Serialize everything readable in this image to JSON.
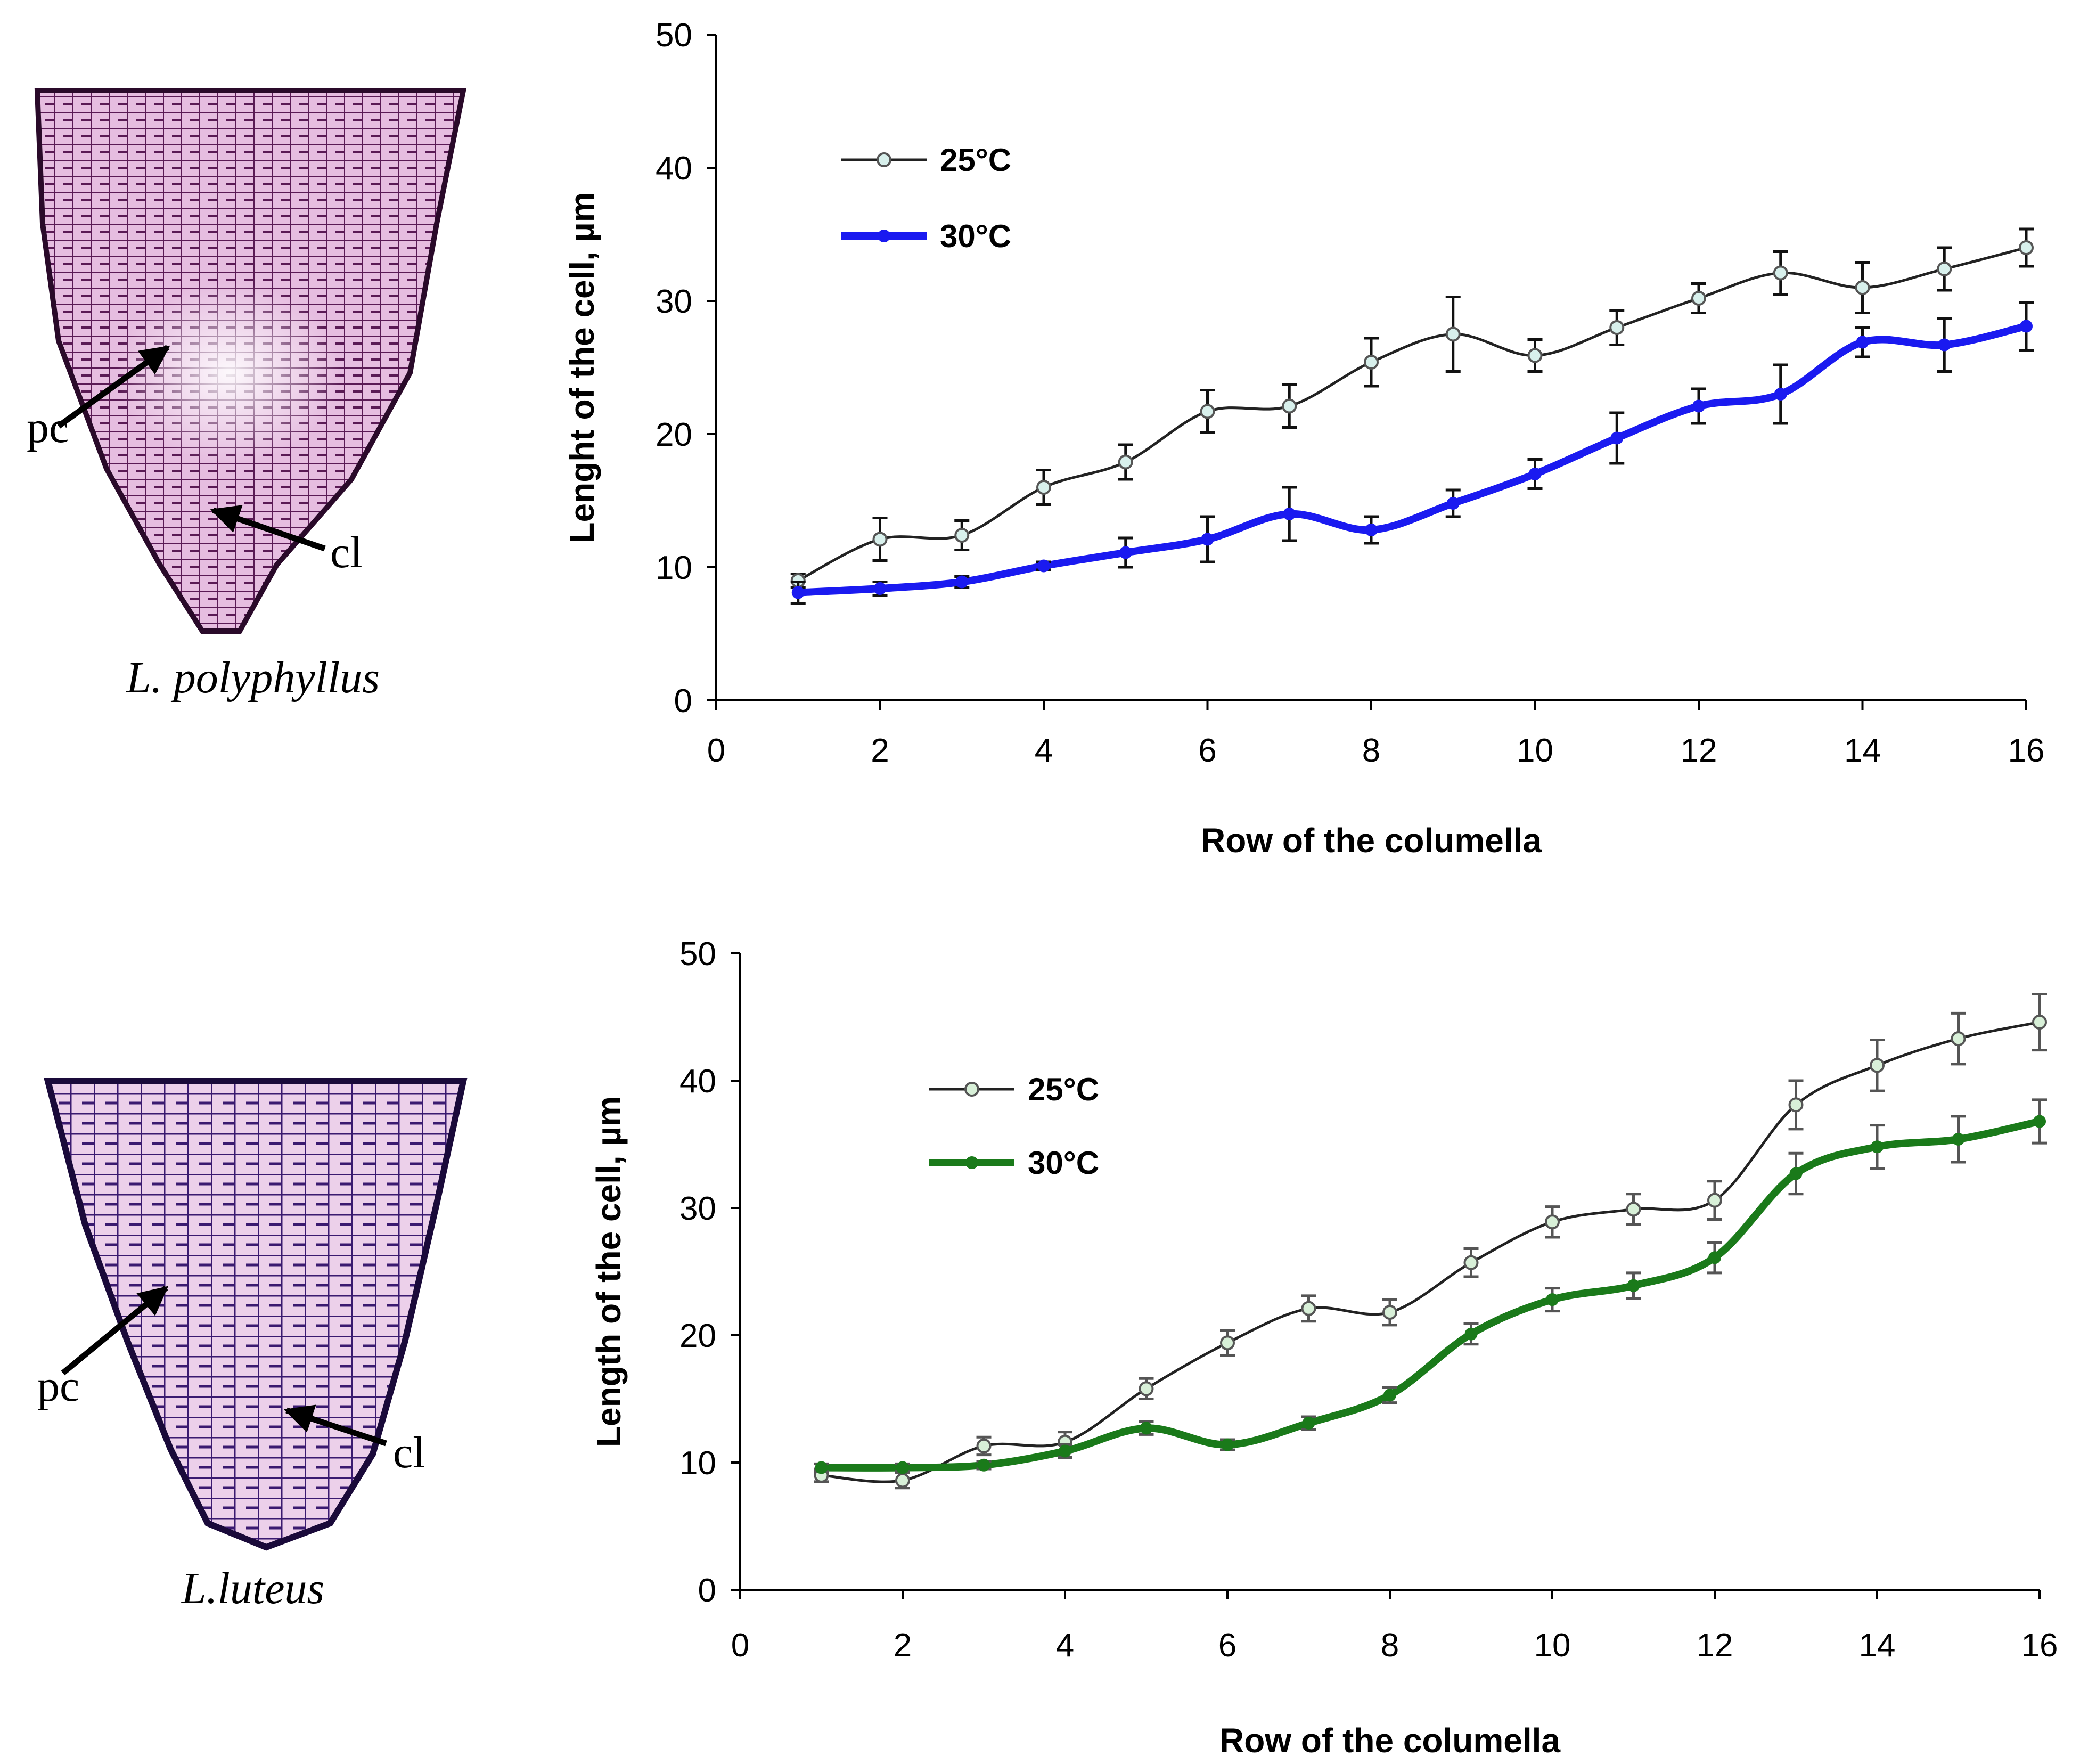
{
  "photos": [
    {
      "species": "L. polyphyllus",
      "label_pc": "pc",
      "label_cl": "cl",
      "color": "#a03a90"
    },
    {
      "species": "L.luteus",
      "label_pc": "pc",
      "label_cl": "cl",
      "color": "#6a2aa0"
    }
  ],
  "chart_data": [
    {
      "type": "line",
      "title": "",
      "xlabel": "Row of the columella",
      "ylabel": "Lenght of the cell, µm",
      "xlim": [
        0,
        16
      ],
      "ylim": [
        0,
        50
      ],
      "xticks": [
        0,
        2,
        4,
        6,
        8,
        10,
        12,
        14,
        16
      ],
      "yticks": [
        0,
        10,
        20,
        30,
        40,
        50
      ],
      "grid": false,
      "legend_position": "top-left",
      "x": [
        1,
        2,
        3,
        4,
        5,
        6,
        7,
        8,
        9,
        10,
        11,
        12,
        13,
        14,
        15,
        16
      ],
      "series": [
        {
          "name": "25°C",
          "color": "#222222",
          "marker_fill": "#d8f0ec",
          "thick": false,
          "values": [
            9,
            12.1,
            12.4,
            16,
            17.9,
            21.7,
            22.1,
            25.4,
            27.5,
            25.9,
            28,
            30.2,
            32.1,
            31,
            32.4,
            34
          ],
          "errors": [
            0.5,
            1.6,
            1.1,
            1.3,
            1.3,
            1.6,
            1.6,
            1.8,
            2.8,
            1.2,
            1.3,
            1.1,
            1.6,
            1.9,
            1.6,
            1.4
          ]
        },
        {
          "name": "30°C",
          "color": "#1a1af0",
          "marker_fill": "#1a1af0",
          "thick": true,
          "values": [
            8.1,
            8.4,
            8.9,
            10.1,
            11.1,
            12.1,
            14,
            12.8,
            14.8,
            17,
            19.7,
            22.1,
            23,
            26.9,
            26.7,
            28.1
          ],
          "errors": [
            0.8,
            0.5,
            0.4,
            0.3,
            1.1,
            1.7,
            2,
            1,
            1,
            1.1,
            1.9,
            1.3,
            2.2,
            1.1,
            2,
            1.8
          ]
        }
      ]
    },
    {
      "type": "line",
      "title": "",
      "xlabel": "Row of the columella",
      "ylabel": "Length of the cell, µm",
      "xlim": [
        0,
        16
      ],
      "ylim": [
        0,
        50
      ],
      "xticks": [
        0,
        2,
        4,
        6,
        8,
        10,
        12,
        14,
        16
      ],
      "yticks": [
        0,
        10,
        20,
        30,
        40,
        50
      ],
      "grid": false,
      "legend_position": "top-left",
      "x": [
        1,
        2,
        3,
        4,
        5,
        6,
        7,
        8,
        9,
        10,
        11,
        12,
        13,
        14,
        15,
        16
      ],
      "series": [
        {
          "name": "25°C",
          "color": "#222222",
          "marker_fill": "#d8f0d8",
          "thick": false,
          "values": [
            9,
            8.6,
            11.3,
            11.6,
            15.8,
            19.4,
            22.1,
            21.8,
            25.7,
            28.9,
            29.9,
            30.6,
            38.1,
            41.2,
            43.3,
            44.6
          ],
          "errors": [
            0.5,
            0.6,
            0.7,
            0.8,
            0.8,
            1,
            1,
            1,
            1.1,
            1.2,
            1.2,
            1.5,
            1.9,
            2,
            2,
            2.2
          ]
        },
        {
          "name": "30°C",
          "color": "#1a7a1a",
          "marker_fill": "#1a7a1a",
          "thick": true,
          "values": [
            9.6,
            9.6,
            9.8,
            10.9,
            12.7,
            11.4,
            13.1,
            15.3,
            20.1,
            22.8,
            23.9,
            26.1,
            32.7,
            34.8,
            35.4,
            36.8
          ],
          "errors": [
            0.3,
            0.3,
            0.3,
            0.5,
            0.5,
            0.4,
            0.5,
            0.6,
            0.8,
            0.9,
            1,
            1.2,
            1.6,
            1.7,
            1.8,
            1.7
          ]
        }
      ]
    }
  ]
}
